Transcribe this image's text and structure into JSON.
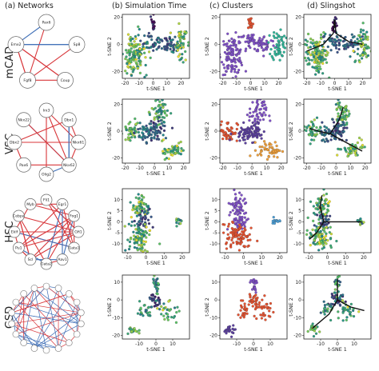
{
  "column_headers": [
    "(a)  Networks",
    "(b) Simulation Time",
    "(c) Clusters",
    "(d) Slingshot"
  ],
  "row_labels": [
    "mCAD",
    "VSC",
    "HSC",
    "GSD"
  ],
  "colors": {
    "repression": "#d8363a",
    "activation": "#3f6fb7",
    "trajectory": "#111111",
    "viridis": [
      "#440154",
      "#3b528b",
      "#21918c",
      "#5ec962",
      "#fde725"
    ],
    "clusters": [
      "#7f4fc9",
      "#e8522f",
      "#2fb79a",
      "#4a9fd8",
      "#f2a13a",
      "#5b3fa0"
    ]
  },
  "networks": [
    {
      "row": "mCAD",
      "nodes": [
        "Pax6",
        "Sp8",
        "Coup",
        "Fgf8",
        "Emx2"
      ]
    },
    {
      "row": "VSC",
      "nodes": [
        "Irx3",
        "Dbx1",
        "Nkx61",
        "Nkx62",
        "Olig2",
        "Pax6",
        "Dbx2",
        "Nkx22"
      ]
    },
    {
      "row": "HSC",
      "nodes": [
        "Fli1",
        "Egr1",
        "Fog1",
        "Gfi1",
        "Gata1",
        "Aav1",
        "Gata2",
        "Scl",
        "Pu1",
        "Eklf",
        "Cebpa",
        "Myb"
      ]
    },
    {
      "row": "GSD",
      "nodes": []
    }
  ],
  "chart_data": [
    {
      "type": "scatter",
      "row": "mCAD",
      "panel": "Simulation Time",
      "xlabel": "t-SNE 1",
      "ylabel": "t-SNE 2",
      "xlim": [
        -22,
        26
      ],
      "ylim": [
        -25,
        22
      ],
      "xticks": [
        -20,
        -10,
        0,
        10,
        20
      ],
      "yticks": [
        -20,
        0,
        20
      ],
      "color_by": "viridis",
      "clusters": [
        {
          "x": -13,
          "y": -8,
          "sx": 4,
          "sy": 7,
          "n": 130,
          "c": [
            0.45,
            1.0
          ]
        },
        {
          "x": 0,
          "y": 2,
          "sx": 4,
          "sy": 3,
          "n": 40,
          "c": [
            0.2,
            0.5
          ]
        },
        {
          "x": 0,
          "y": 15,
          "sx": 1,
          "sy": 3,
          "n": 20,
          "c": [
            0.0,
            0.2
          ]
        },
        {
          "x": 10,
          "y": 0,
          "sx": 4,
          "sy": 3,
          "n": 40,
          "c": [
            0.15,
            0.45
          ]
        },
        {
          "x": 20,
          "y": 0,
          "sx": 2.5,
          "sy": 6,
          "n": 60,
          "c": [
            0.45,
            1.0
          ]
        }
      ]
    },
    {
      "type": "scatter",
      "row": "mCAD",
      "panel": "Clusters",
      "xlabel": "t-SNE 1",
      "ylabel": "t-SNE 2",
      "xlim": [
        -22,
        26
      ],
      "ylim": [
        -25,
        22
      ],
      "xticks": [
        -20,
        -10,
        0,
        10,
        20
      ],
      "yticks": [
        -20,
        0,
        20
      ],
      "color_by": "cluster",
      "clusters": [
        {
          "x": -13,
          "y": -8,
          "sx": 4,
          "sy": 7,
          "n": 130,
          "k": 0
        },
        {
          "x": 0,
          "y": 2,
          "sx": 4,
          "sy": 3,
          "n": 40,
          "k": 0
        },
        {
          "x": 0,
          "y": 15,
          "sx": 1,
          "sy": 3,
          "n": 20,
          "k": 1
        },
        {
          "x": 10,
          "y": 0,
          "sx": 4,
          "sy": 3,
          "n": 40,
          "k": 0
        },
        {
          "x": 20,
          "y": 0,
          "sx": 2.5,
          "sy": 6,
          "n": 60,
          "k": 2
        }
      ]
    },
    {
      "type": "scatter",
      "row": "mCAD",
      "panel": "Slingshot",
      "xlabel": "t-SNE 1",
      "ylabel": "t-SNE 2",
      "xlim": [
        -22,
        26
      ],
      "ylim": [
        -25,
        22
      ],
      "xticks": [
        -20,
        -10,
        0,
        10,
        20
      ],
      "yticks": [
        -20,
        0,
        20
      ],
      "color_by": "viridis",
      "clusters": [
        {
          "x": -13,
          "y": -8,
          "sx": 4,
          "sy": 7,
          "n": 130,
          "c": [
            0.45,
            1.0
          ]
        },
        {
          "x": 0,
          "y": 2,
          "sx": 4,
          "sy": 3,
          "n": 40,
          "c": [
            0.2,
            0.5
          ]
        },
        {
          "x": 0,
          "y": 15,
          "sx": 1,
          "sy": 3,
          "n": 20,
          "c": [
            0.0,
            0.2
          ]
        },
        {
          "x": 10,
          "y": 0,
          "sx": 4,
          "sy": 3,
          "n": 40,
          "c": [
            0.15,
            0.45
          ]
        },
        {
          "x": 20,
          "y": 0,
          "sx": 2.5,
          "sy": 6,
          "n": 60,
          "c": [
            0.45,
            1.0
          ]
        }
      ],
      "curves": [
        [
          [
            0,
            18
          ],
          [
            -1,
            8
          ],
          [
            -8,
            0
          ],
          [
            -20,
            -5
          ]
        ],
        [
          [
            0,
            18
          ],
          [
            1,
            8
          ],
          [
            10,
            2
          ],
          [
            20,
            0
          ]
        ]
      ]
    },
    {
      "type": "scatter",
      "row": "VSC",
      "panel": "Simulation Time",
      "xlabel": "t-SNE 1",
      "ylabel": "t-SNE 2",
      "xlim": [
        -22,
        24
      ],
      "ylim": [
        -24,
        24
      ],
      "xticks": [
        -20,
        -10,
        0,
        10,
        20
      ],
      "yticks": [
        -20,
        0,
        20
      ],
      "color_by": "viridis",
      "clusters": [
        {
          "x": -16,
          "y": 0,
          "sx": 3,
          "sy": 4,
          "n": 50,
          "c": [
            0.5,
            0.9
          ]
        },
        {
          "x": -5,
          "y": -2,
          "sx": 4,
          "sy": 3,
          "n": 50,
          "c": [
            0.2,
            0.5
          ]
        },
        {
          "x": 4,
          "y": 14,
          "sx": 3,
          "sy": 6,
          "n": 60,
          "c": [
            0.4,
            0.9
          ]
        },
        {
          "x": 2,
          "y": 0,
          "sx": 3,
          "sy": 4,
          "n": 40,
          "c": [
            0.1,
            0.4
          ]
        },
        {
          "x": 12,
          "y": -14,
          "sx": 4,
          "sy": 3,
          "n": 50,
          "c": [
            0.5,
            1.0
          ]
        }
      ]
    },
    {
      "type": "scatter",
      "row": "VSC",
      "panel": "Clusters",
      "xlabel": "t-SNE 1",
      "ylabel": "t-SNE 2",
      "xlim": [
        -22,
        24
      ],
      "ylim": [
        -24,
        24
      ],
      "xticks": [
        -20,
        -10,
        0,
        10,
        20
      ],
      "yticks": [
        -20,
        0,
        20
      ],
      "color_by": "cluster",
      "clusters": [
        {
          "x": -16,
          "y": 0,
          "sx": 3,
          "sy": 4,
          "n": 50,
          "k": 1
        },
        {
          "x": -5,
          "y": -2,
          "sx": 4,
          "sy": 3,
          "n": 50,
          "k": 5
        },
        {
          "x": 4,
          "y": 14,
          "sx": 3,
          "sy": 6,
          "n": 60,
          "k": 0
        },
        {
          "x": 2,
          "y": 0,
          "sx": 3,
          "sy": 4,
          "n": 40,
          "k": 5
        },
        {
          "x": 12,
          "y": -14,
          "sx": 4,
          "sy": 3,
          "n": 50,
          "k": 4
        }
      ]
    },
    {
      "type": "scatter",
      "row": "VSC",
      "panel": "Slingshot",
      "xlabel": "t-SNE 1",
      "ylabel": "t-SNE 2",
      "xlim": [
        -22,
        24
      ],
      "ylim": [
        -24,
        24
      ],
      "xticks": [
        -20,
        -10,
        0,
        10,
        20
      ],
      "yticks": [
        -20,
        0,
        20
      ],
      "color_by": "viridis",
      "clusters": [
        {
          "x": -16,
          "y": 0,
          "sx": 3,
          "sy": 4,
          "n": 50,
          "c": [
            0.5,
            0.9
          ]
        },
        {
          "x": -5,
          "y": -2,
          "sx": 4,
          "sy": 3,
          "n": 50,
          "c": [
            0.2,
            0.5
          ]
        },
        {
          "x": 4,
          "y": 14,
          "sx": 3,
          "sy": 6,
          "n": 60,
          "c": [
            0.4,
            0.9
          ]
        },
        {
          "x": 2,
          "y": 0,
          "sx": 3,
          "sy": 4,
          "n": 40,
          "c": [
            0.1,
            0.4
          ]
        },
        {
          "x": 12,
          "y": -14,
          "sx": 4,
          "sy": 3,
          "n": 50,
          "c": [
            0.5,
            1.0
          ]
        }
      ],
      "curves": [
        [
          [
            -4,
            -2
          ],
          [
            -12,
            0
          ],
          [
            -18,
            2
          ]
        ],
        [
          [
            -4,
            -2
          ],
          [
            2,
            8
          ],
          [
            5,
            18
          ]
        ],
        [
          [
            -4,
            -2
          ],
          [
            6,
            -8
          ],
          [
            18,
            -15
          ]
        ]
      ]
    },
    {
      "type": "scatter",
      "row": "HSC",
      "panel": "Simulation Time",
      "xlabel": "t-SNE 1",
      "ylabel": "t-SNE 2",
      "xlim": [
        -13,
        24
      ],
      "ylim": [
        -14,
        15
      ],
      "xticks": [
        -10,
        0,
        10,
        20
      ],
      "yticks": [
        -10,
        -5,
        0,
        5,
        10
      ],
      "color_by": "viridis",
      "clusters": [
        {
          "x": -3,
          "y": 7,
          "sx": 2.5,
          "sy": 3,
          "n": 60,
          "c": [
            0.45,
            1.0
          ]
        },
        {
          "x": -2,
          "y": 0,
          "sx": 2,
          "sy": 2,
          "n": 40,
          "c": [
            0.1,
            0.4
          ]
        },
        {
          "x": -4,
          "y": -7,
          "sx": 3.5,
          "sy": 3,
          "n": 90,
          "c": [
            0.45,
            1.0
          ]
        },
        {
          "x": 18,
          "y": 0,
          "sx": 1.2,
          "sy": 1,
          "n": 15,
          "c": [
            0.3,
            0.9
          ]
        }
      ]
    },
    {
      "type": "scatter",
      "row": "HSC",
      "panel": "Clusters",
      "xlabel": "t-SNE 1",
      "ylabel": "t-SNE 2",
      "xlim": [
        -13,
        24
      ],
      "ylim": [
        -14,
        15
      ],
      "xticks": [
        -10,
        0,
        10,
        20
      ],
      "yticks": [
        -10,
        -5,
        0,
        5,
        10
      ],
      "color_by": "cluster",
      "clusters": [
        {
          "x": -3,
          "y": 7,
          "sx": 2.5,
          "sy": 3,
          "n": 60,
          "k": 0
        },
        {
          "x": -2,
          "y": 0,
          "sx": 2,
          "sy": 2,
          "n": 40,
          "k": 0
        },
        {
          "x": -4,
          "y": -7,
          "sx": 3.5,
          "sy": 3,
          "n": 90,
          "k": 1
        },
        {
          "x": 18,
          "y": 0,
          "sx": 1.2,
          "sy": 1,
          "n": 15,
          "k": 3
        }
      ]
    },
    {
      "type": "scatter",
      "row": "HSC",
      "panel": "Slingshot",
      "xlabel": "t-SNE 1",
      "ylabel": "t-SNE 2",
      "xlim": [
        -13,
        24
      ],
      "ylim": [
        -14,
        15
      ],
      "xticks": [
        -10,
        0,
        10,
        20
      ],
      "yticks": [
        -10,
        -5,
        0,
        5,
        10
      ],
      "color_by": "viridis",
      "clusters": [
        {
          "x": -3,
          "y": 7,
          "sx": 2.5,
          "sy": 3,
          "n": 60,
          "c": [
            0.45,
            1.0
          ]
        },
        {
          "x": -2,
          "y": 0,
          "sx": 2,
          "sy": 2,
          "n": 40,
          "c": [
            0.1,
            0.4
          ]
        },
        {
          "x": -4,
          "y": -7,
          "sx": 3.5,
          "sy": 3,
          "n": 90,
          "c": [
            0.45,
            1.0
          ]
        },
        {
          "x": 18,
          "y": 0,
          "sx": 1.2,
          "sy": 1,
          "n": 15,
          "c": [
            0.3,
            0.9
          ]
        }
      ],
      "curves": [
        [
          [
            -2,
            0
          ],
          [
            -4,
            7
          ],
          [
            -3,
            12
          ]
        ],
        [
          [
            -2,
            0
          ],
          [
            -6,
            -5
          ],
          [
            -10,
            -8
          ]
        ],
        [
          [
            -2,
            0
          ],
          [
            8,
            0
          ],
          [
            19,
            0
          ]
        ]
      ]
    },
    {
      "type": "scatter",
      "row": "GSD",
      "panel": "Simulation Time",
      "xlabel": "t-SNE 1",
      "ylabel": "t-SNE 2",
      "xlim": [
        -20,
        20
      ],
      "ylim": [
        -22,
        14
      ],
      "xticks": [
        -10,
        0,
        10
      ],
      "yticks": [
        -20,
        -10,
        0,
        10
      ],
      "color_by": "viridis",
      "clusters": [
        {
          "x": 0,
          "y": 0,
          "sx": 2,
          "sy": 2,
          "n": 30,
          "c": [
            0.05,
            0.3
          ]
        },
        {
          "x": 0,
          "y": 8,
          "sx": 1,
          "sy": 3,
          "n": 25,
          "c": [
            0.3,
            0.8
          ]
        },
        {
          "x": -6,
          "y": -6,
          "sx": 2,
          "sy": 2.5,
          "n": 25,
          "c": [
            0.3,
            0.8
          ]
        },
        {
          "x": 6,
          "y": -6,
          "sx": 3,
          "sy": 3,
          "n": 30,
          "c": [
            0.4,
            1.0
          ]
        },
        {
          "x": -14,
          "y": -17,
          "sx": 1.5,
          "sy": 1.5,
          "n": 20,
          "c": [
            0.5,
            0.9
          ]
        }
      ]
    },
    {
      "type": "scatter",
      "row": "GSD",
      "panel": "Clusters",
      "xlabel": "t-SNE 1",
      "ylabel": "t-SNE 2",
      "xlim": [
        -20,
        20
      ],
      "ylim": [
        -22,
        14
      ],
      "xticks": [
        -10,
        0,
        10
      ],
      "yticks": [
        -20,
        -10,
        0,
        10
      ],
      "color_by": "cluster",
      "clusters": [
        {
          "x": 0,
          "y": 0,
          "sx": 2,
          "sy": 2,
          "n": 30,
          "k": 1
        },
        {
          "x": 0,
          "y": 8,
          "sx": 1,
          "sy": 3,
          "n": 25,
          "k": 0
        },
        {
          "x": -6,
          "y": -6,
          "sx": 2,
          "sy": 2.5,
          "n": 25,
          "k": 1
        },
        {
          "x": 6,
          "y": -6,
          "sx": 3,
          "sy": 3,
          "n": 30,
          "k": 1
        },
        {
          "x": -14,
          "y": -17,
          "sx": 1.5,
          "sy": 1.5,
          "n": 20,
          "k": 5
        }
      ]
    },
    {
      "type": "scatter",
      "row": "GSD",
      "panel": "Slingshot",
      "xlabel": "t-SNE 1",
      "ylabel": "t-SNE 2",
      "xlim": [
        -20,
        20
      ],
      "ylim": [
        -22,
        14
      ],
      "xticks": [
        -10,
        0,
        10
      ],
      "yticks": [
        -20,
        -10,
        0,
        10
      ],
      "color_by": "viridis",
      "clusters": [
        {
          "x": 0,
          "y": 0,
          "sx": 2,
          "sy": 2,
          "n": 30,
          "c": [
            0.05,
            0.3
          ]
        },
        {
          "x": 0,
          "y": 8,
          "sx": 1,
          "sy": 3,
          "n": 25,
          "c": [
            0.3,
            0.8
          ]
        },
        {
          "x": -6,
          "y": -6,
          "sx": 2,
          "sy": 2.5,
          "n": 25,
          "c": [
            0.3,
            0.8
          ]
        },
        {
          "x": 6,
          "y": -6,
          "sx": 3,
          "sy": 3,
          "n": 30,
          "c": [
            0.4,
            1.0
          ]
        },
        {
          "x": -14,
          "y": -17,
          "sx": 1.5,
          "sy": 1.5,
          "n": 20,
          "c": [
            0.5,
            0.9
          ]
        }
      ],
      "curves": [
        [
          [
            0,
            0
          ],
          [
            -5,
            -8
          ],
          [
            -15,
            -16
          ]
        ],
        [
          [
            0,
            0
          ],
          [
            0,
            8
          ],
          [
            0,
            12
          ]
        ],
        [
          [
            0,
            0
          ],
          [
            8,
            -4
          ],
          [
            16,
            -6
          ]
        ]
      ]
    }
  ]
}
